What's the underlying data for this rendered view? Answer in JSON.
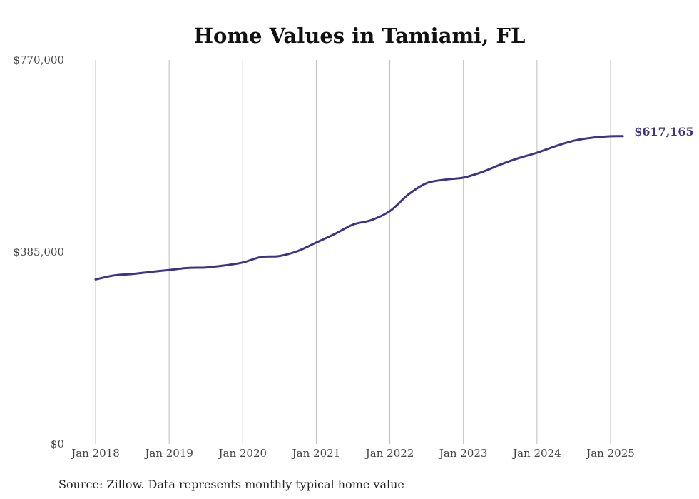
{
  "chart_data": {
    "type": "line",
    "title": "Home Values in Tamiami, FL",
    "source": "Source: Zillow. Data represents monthly typical home value",
    "xlabel": "",
    "ylabel": "",
    "ylim": [
      0,
      770000
    ],
    "y_ticks": [
      {
        "value": 0,
        "label": "$0"
      },
      {
        "value": 385000,
        "label": "$385,000"
      },
      {
        "value": 770000,
        "label": "$770,000"
      }
    ],
    "x_ticks": [
      {
        "value": "2018-01",
        "label": "Jan 2018"
      },
      {
        "value": "2019-01",
        "label": "Jan 2019"
      },
      {
        "value": "2020-01",
        "label": "Jan 2020"
      },
      {
        "value": "2021-01",
        "label": "Jan 2021"
      },
      {
        "value": "2022-01",
        "label": "Jan 2022"
      },
      {
        "value": "2023-01",
        "label": "Jan 2023"
      },
      {
        "value": "2024-01",
        "label": "Jan 2024"
      },
      {
        "value": "2025-01",
        "label": "Jan 2025"
      }
    ],
    "grid": "vertical",
    "line_color": "#3d3388",
    "series": [
      {
        "end_label": "$617,165",
        "points": [
          {
            "x": "2018-01",
            "y": 330000
          },
          {
            "x": "2018-04",
            "y": 338000
          },
          {
            "x": "2018-07",
            "y": 341000
          },
          {
            "x": "2018-10",
            "y": 345000
          },
          {
            "x": "2019-01",
            "y": 349000
          },
          {
            "x": "2019-04",
            "y": 353000
          },
          {
            "x": "2019-07",
            "y": 354000
          },
          {
            "x": "2019-10",
            "y": 358000
          },
          {
            "x": "2020-01",
            "y": 364000
          },
          {
            "x": "2020-04",
            "y": 375000
          },
          {
            "x": "2020-07",
            "y": 377000
          },
          {
            "x": "2020-10",
            "y": 387000
          },
          {
            "x": "2021-01",
            "y": 404000
          },
          {
            "x": "2021-04",
            "y": 421000
          },
          {
            "x": "2021-07",
            "y": 440000
          },
          {
            "x": "2021-10",
            "y": 449000
          },
          {
            "x": "2022-01",
            "y": 467000
          },
          {
            "x": "2022-04",
            "y": 500000
          },
          {
            "x": "2022-07",
            "y": 523000
          },
          {
            "x": "2022-10",
            "y": 530000
          },
          {
            "x": "2023-01",
            "y": 534000
          },
          {
            "x": "2023-04",
            "y": 545000
          },
          {
            "x": "2023-07",
            "y": 560000
          },
          {
            "x": "2023-10",
            "y": 573000
          },
          {
            "x": "2024-01",
            "y": 584000
          },
          {
            "x": "2024-04",
            "y": 597000
          },
          {
            "x": "2024-07",
            "y": 608000
          },
          {
            "x": "2024-10",
            "y": 614000
          },
          {
            "x": "2025-01",
            "y": 617000
          },
          {
            "x": "2025-03",
            "y": 617165
          }
        ]
      }
    ]
  }
}
